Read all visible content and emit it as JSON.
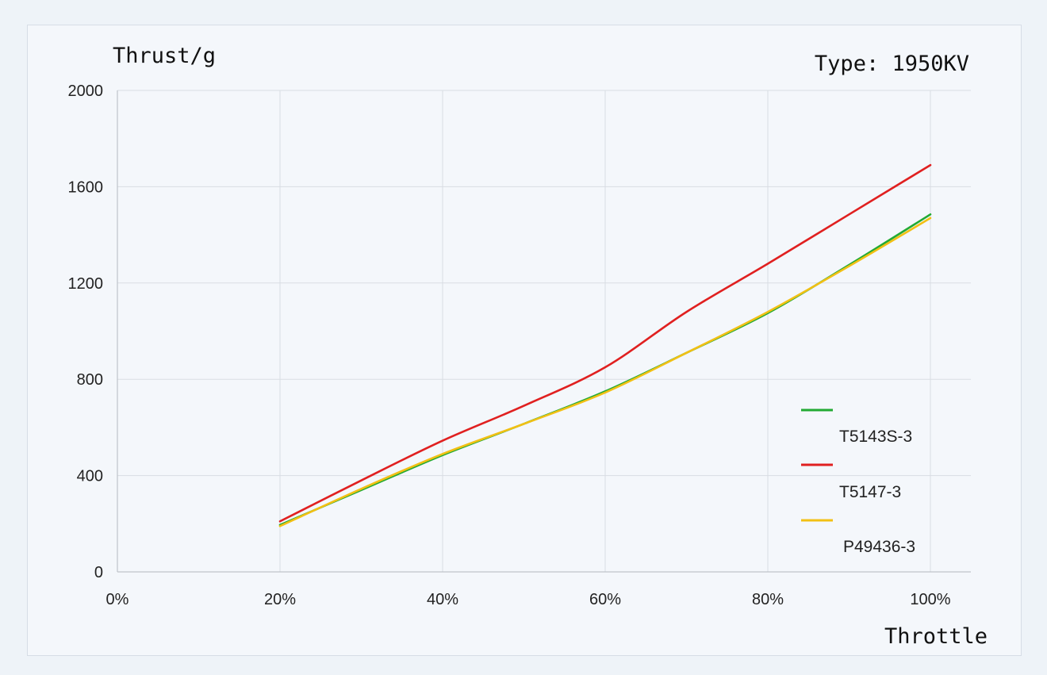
{
  "chart_data": {
    "type": "line",
    "ylabel": "Thrust/g",
    "xlabel": "Throttle",
    "annotation": "Type: 1950KV",
    "x_ticks": [
      "0%",
      "20%",
      "40%",
      "60%",
      "80%",
      "100%"
    ],
    "y_ticks": [
      "0",
      "400",
      "800",
      "1200",
      "1600",
      "2000"
    ],
    "xlim": [
      0,
      100
    ],
    "ylim": [
      0,
      2000
    ],
    "grid": true,
    "legend_position": "right",
    "series": [
      {
        "name": "T5143S-3",
        "color": "#22aa33",
        "x": [
          20,
          30,
          40,
          50,
          60,
          70,
          80,
          90,
          100
        ],
        "y": [
          195,
          340,
          485,
          615,
          750,
          910,
          1075,
          1275,
          1485
        ]
      },
      {
        "name": "T5147-3",
        "color": "#e02020",
        "x": [
          20,
          30,
          40,
          50,
          60,
          70,
          80,
          90,
          100
        ],
        "y": [
          210,
          380,
          545,
          690,
          850,
          1080,
          1280,
          1485,
          1690
        ]
      },
      {
        "name": "P49436-3",
        "color": "#f2c014",
        "x": [
          20,
          30,
          40,
          50,
          60,
          70,
          80,
          90,
          100
        ],
        "y": [
          190,
          345,
          490,
          615,
          745,
          910,
          1080,
          1270,
          1470
        ]
      }
    ]
  }
}
